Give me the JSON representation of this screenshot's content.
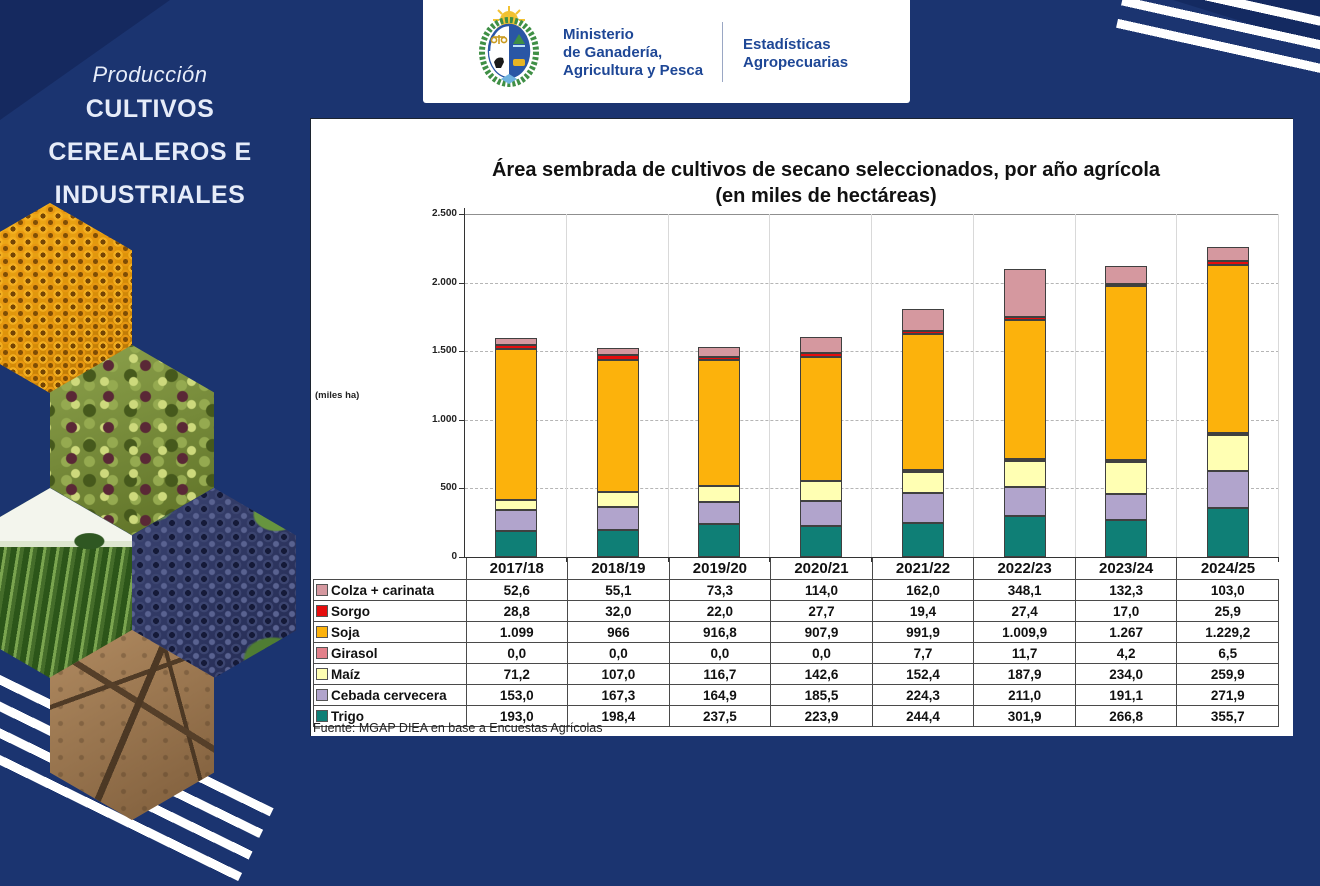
{
  "sidebar": {
    "kicker": "Producción",
    "title_lines": [
      "CULTIVOS",
      "CEREALEROS E",
      "INDUSTRIALES"
    ]
  },
  "header": {
    "ministry_lines": [
      "Ministerio",
      "de Ganadería,",
      "Agricultura y Pesca"
    ],
    "unit_lines": [
      "Estadísticas",
      "Agropecuarias"
    ]
  },
  "chart": {
    "title_line1": "Área sembrada de cultivos de secano seleccionados, por año agrícola",
    "title_line2": "(en miles de hectáreas)",
    "y_axis_unit": "(miles ha)",
    "y_ticks": [
      "2.500",
      "2.000",
      "1.500",
      "1.000",
      "500",
      "0"
    ]
  },
  "chart_data": {
    "type": "bar",
    "stacked": true,
    "title": "Área sembrada de cultivos de secano seleccionados, por año agrícola (en miles de hectáreas)",
    "ylabel": "(miles ha)",
    "ylim": [
      0,
      2500
    ],
    "grid": true,
    "categories": [
      "2017/18",
      "2018/19",
      "2019/20",
      "2020/21",
      "2021/22",
      "2022/23",
      "2023/24",
      "2024/25"
    ],
    "series": [
      {
        "name": "Colza + carinata",
        "color": "#d5989f",
        "values": [
          52.6,
          55.1,
          73.3,
          114.0,
          162.0,
          348.1,
          132.3,
          103.0
        ],
        "display": [
          "52,6",
          "55,1",
          "73,3",
          "114,0",
          "162,0",
          "348,1",
          "132,3",
          "103,0"
        ]
      },
      {
        "name": "Sorgo",
        "color": "#e50d0d",
        "values": [
          28.8,
          32.0,
          22.0,
          27.7,
          19.4,
          27.4,
          17.0,
          25.9
        ],
        "display": [
          "28,8",
          "32,0",
          "22,0",
          "27,7",
          "19,4",
          "27,4",
          "17,0",
          "25,9"
        ]
      },
      {
        "name": "Soja",
        "color": "#fcb20c",
        "values": [
          1099,
          966,
          916.8,
          907.9,
          991.9,
          1009.9,
          1267,
          1229.2
        ],
        "display": [
          "1.099",
          "966",
          "916,8",
          "907,9",
          "991,9",
          "1.009,9",
          "1.267",
          "1.229,2"
        ]
      },
      {
        "name": "Girasol",
        "color": "#e2808a",
        "values": [
          0.0,
          0.0,
          0.0,
          0.0,
          7.7,
          11.7,
          4.2,
          6.5
        ],
        "display": [
          "0,0",
          "0,0",
          "0,0",
          "0,0",
          "7,7",
          "11,7",
          "4,2",
          "6,5"
        ]
      },
      {
        "name": "Maíz",
        "color": "#ffffb3",
        "values": [
          71.2,
          107.0,
          116.7,
          142.6,
          152.4,
          187.9,
          234.0,
          259.9
        ],
        "display": [
          "71,2",
          "107,0",
          "116,7",
          "142,6",
          "152,4",
          "187,9",
          "234,0",
          "259,9"
        ]
      },
      {
        "name": "Cebada cervecera",
        "color": "#b1a4cc",
        "values": [
          153.0,
          167.3,
          164.9,
          185.5,
          224.3,
          211.0,
          191.1,
          271.9
        ],
        "display": [
          "153,0",
          "167,3",
          "164,9",
          "185,5",
          "224,3",
          "211,0",
          "191,1",
          "271,9"
        ]
      },
      {
        "name": "Trigo",
        "color": "#0f7f76",
        "values": [
          193.0,
          198.4,
          237.5,
          223.9,
          244.4,
          301.9,
          266.8,
          355.7
        ],
        "display": [
          "193,0",
          "198,4",
          "237,5",
          "223,9",
          "244,4",
          "301,9",
          "266,8",
          "355,7"
        ]
      }
    ],
    "stack_order_bottom_to_top": [
      "Trigo",
      "Cebada cervecera",
      "Maíz",
      "Girasol",
      "Soja",
      "Sorgo",
      "Colza + carinata"
    ],
    "legend_position": "table-left"
  },
  "footer": {
    "source": "Fuente: MGAP DIEA en base a Encuestas Agrícolas"
  }
}
